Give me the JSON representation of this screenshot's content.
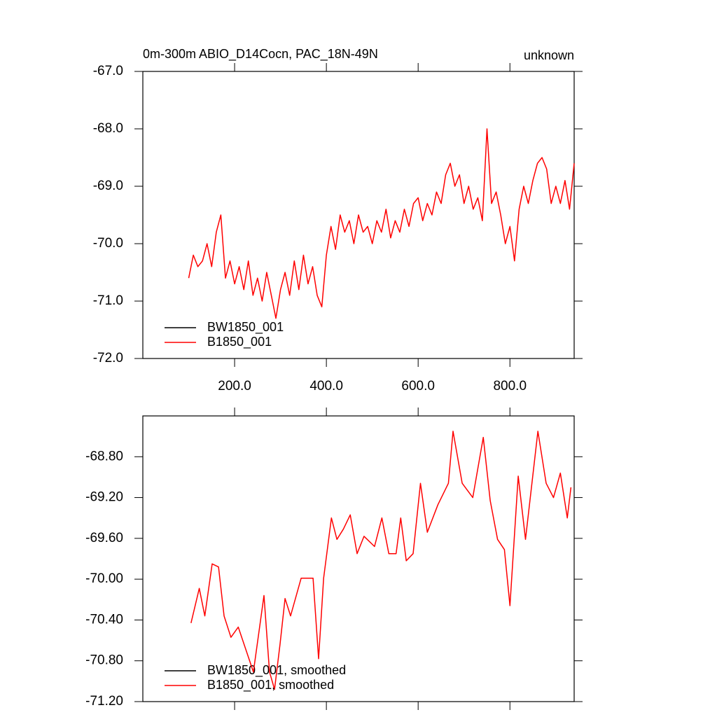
{
  "chart_data": [
    {
      "type": "line",
      "title": "0m-300m ABIO_D14Cocn, PAC_18N-49N",
      "right_title": "unknown",
      "x": [
        100,
        110,
        120,
        130,
        140,
        150,
        160,
        170,
        180,
        190,
        200,
        210,
        220,
        230,
        240,
        250,
        260,
        270,
        280,
        290,
        300,
        310,
        320,
        330,
        340,
        350,
        360,
        370,
        380,
        390,
        400,
        410,
        420,
        430,
        440,
        450,
        460,
        470,
        480,
        490,
        500,
        510,
        520,
        530,
        540,
        550,
        560,
        570,
        580,
        590,
        600,
        610,
        620,
        630,
        640,
        650,
        660,
        670,
        680,
        690,
        700,
        710,
        720,
        730,
        740,
        750,
        760,
        770,
        780,
        790,
        800,
        810,
        820,
        830,
        840,
        850,
        860,
        870,
        880,
        890,
        900,
        910,
        920,
        930,
        940
      ],
      "series": [
        {
          "name": "BW1850_001",
          "color": "#000000",
          "values": [
            null,
            null,
            null,
            null,
            null,
            null,
            null,
            null,
            null,
            null,
            null,
            null,
            null,
            null,
            null,
            null,
            null,
            null,
            null,
            null,
            null,
            null,
            null,
            null,
            null,
            null,
            null,
            null,
            null,
            null,
            null,
            null,
            null,
            null,
            null,
            null,
            null,
            null,
            null,
            null,
            null,
            null,
            null,
            null,
            null,
            null,
            null,
            null,
            null,
            null,
            null,
            null,
            null,
            null,
            null,
            null,
            null,
            null,
            null,
            null,
            null,
            null,
            null,
            null,
            null,
            null,
            null,
            null,
            null,
            null,
            null,
            null,
            null,
            null,
            null,
            null,
            null,
            null,
            null,
            null,
            null,
            null,
            null,
            null,
            null
          ]
        },
        {
          "name": "B1850_001",
          "color": "#ff0000",
          "values": [
            -70.6,
            -70.2,
            -70.4,
            -70.3,
            -70.0,
            -70.4,
            -69.8,
            -69.5,
            -70.6,
            -70.3,
            -70.7,
            -70.4,
            -70.8,
            -70.3,
            -70.9,
            -70.6,
            -71.0,
            -70.5,
            -70.9,
            -71.3,
            -70.8,
            -70.5,
            -70.9,
            -70.3,
            -70.8,
            -70.2,
            -70.7,
            -70.4,
            -70.9,
            -71.1,
            -70.2,
            -69.7,
            -70.1,
            -69.5,
            -69.8,
            -69.6,
            -70.0,
            -69.5,
            -69.8,
            -69.7,
            -70.0,
            -69.6,
            -69.8,
            -69.4,
            -69.9,
            -69.6,
            -69.8,
            -69.4,
            -69.7,
            -69.3,
            -69.2,
            -69.6,
            -69.3,
            -69.5,
            -69.1,
            -69.3,
            -68.8,
            -68.6,
            -69.0,
            -68.8,
            -69.3,
            -69.0,
            -69.4,
            -69.2,
            -69.6,
            -68.0,
            -69.3,
            -69.1,
            -69.5,
            -70.0,
            -69.7,
            -70.3,
            -69.4,
            -69.0,
            -69.3,
            -68.9,
            -68.6,
            -68.5,
            -68.7,
            -69.3,
            -69.0,
            -69.3,
            -68.9,
            -69.4,
            -68.6
          ]
        }
      ],
      "xlim": [
        0,
        940
      ],
      "xticks": [
        {
          "value": 200,
          "label": "200.0"
        },
        {
          "value": 400,
          "label": "400.0"
        },
        {
          "value": 600,
          "label": "600.0"
        },
        {
          "value": 800,
          "label": "800.0"
        }
      ],
      "ylim": [
        -72,
        -67
      ],
      "yticks": [
        {
          "value": -72,
          "label": "-72.0"
        },
        {
          "value": -71,
          "label": "-71.0"
        },
        {
          "value": -70,
          "label": "-70.0"
        },
        {
          "value": -69,
          "label": "-69.0"
        },
        {
          "value": -68,
          "label": "-68.0"
        },
        {
          "value": -67,
          "label": "-67.0"
        }
      ],
      "xtick_labels": true,
      "legend": "lower-left"
    },
    {
      "type": "line",
      "x": [
        105,
        123,
        135,
        151,
        165,
        177,
        192,
        208,
        226,
        241,
        264,
        276,
        287,
        299,
        310,
        322,
        345,
        371,
        383,
        394,
        411,
        423,
        437,
        452,
        467,
        482,
        505,
        521,
        536,
        552,
        562,
        574,
        589,
        605,
        620,
        643,
        666,
        676,
        696,
        719,
        742,
        757,
        773,
        788,
        800,
        818,
        834,
        861,
        879,
        895,
        910,
        925,
        933
      ],
      "series": [
        {
          "name": "BW1850_001, smoothed",
          "color": "#000000",
          "values": [
            null,
            null,
            null,
            null,
            null,
            null,
            null,
            null,
            null,
            null,
            null,
            null,
            null,
            null,
            null,
            null,
            null,
            null,
            null,
            null,
            null,
            null,
            null,
            null,
            null,
            null,
            null,
            null,
            null,
            null,
            null,
            null,
            null,
            null,
            null,
            null,
            null,
            null,
            null,
            null,
            null,
            null,
            null,
            null,
            null,
            null,
            null,
            null,
            null,
            null,
            null,
            null,
            null
          ]
        },
        {
          "name": "B1850_001, smoothed",
          "color": "#ff0000",
          "values": [
            -70.43,
            -70.09,
            -70.36,
            -69.85,
            -69.88,
            -70.36,
            -70.57,
            -70.47,
            -70.71,
            -70.91,
            -70.16,
            -70.91,
            -71.08,
            -70.64,
            -70.19,
            -70.36,
            -69.99,
            -69.99,
            -70.78,
            -69.99,
            -69.4,
            -69.61,
            -69.51,
            -69.37,
            -69.75,
            -69.58,
            -69.68,
            -69.4,
            -69.75,
            -69.75,
            -69.4,
            -69.82,
            -69.75,
            -69.06,
            -69.54,
            -69.27,
            -69.06,
            -68.55,
            -69.06,
            -69.2,
            -68.61,
            -69.23,
            -69.61,
            -69.71,
            -70.26,
            -68.99,
            -69.61,
            -68.55,
            -69.06,
            -69.2,
            -68.96,
            -69.4,
            -69.1
          ]
        }
      ],
      "xlim": [
        0,
        940
      ],
      "xticks": [
        200,
        400,
        600,
        800
      ],
      "ylim": [
        -71.2,
        -68.4
      ],
      "yticks": [
        {
          "value": -71.2,
          "label": "-71.20"
        },
        {
          "value": -70.8,
          "label": "-70.80"
        },
        {
          "value": -70.4,
          "label": "-70.40"
        },
        {
          "value": -70.0,
          "label": "-70.00"
        },
        {
          "value": -69.6,
          "label": "-69.60"
        },
        {
          "value": -69.2,
          "label": "-69.20"
        },
        {
          "value": -68.8,
          "label": "-68.80"
        }
      ],
      "xtick_labels": false,
      "legend": "lower-left"
    }
  ]
}
